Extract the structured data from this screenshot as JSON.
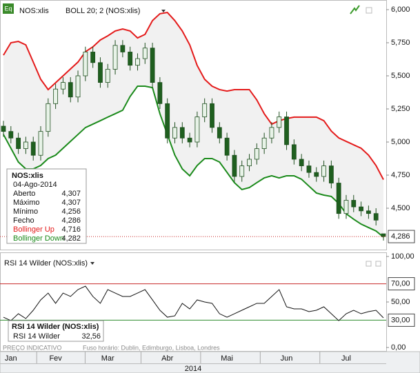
{
  "chart_data": [
    {
      "type": "candlestick",
      "title": "NOS:xlis",
      "indicator": "BOLL 20; 2 (NOS:xlis)",
      "badge": "Eq",
      "categories": [
        null,
        "Jan",
        null,
        null,
        null,
        null,
        null,
        "Fev",
        null,
        null,
        null,
        null,
        null,
        null,
        "Mar",
        null,
        null,
        null,
        null,
        null,
        null,
        null,
        "Abr",
        null,
        null,
        null,
        null,
        null,
        null,
        null,
        "Mai",
        null,
        null,
        null,
        null,
        null,
        null,
        null,
        "Jun",
        null,
        null,
        null,
        null,
        null,
        null,
        null,
        "Jul",
        null,
        null,
        null,
        null,
        null
      ],
      "xlabel": "2014",
      "open": [
        5.12,
        5.08,
        5.03,
        4.95,
        5.0,
        4.9,
        5.08,
        5.29,
        5.4,
        5.45,
        5.34,
        5.5,
        5.68,
        5.6,
        5.45,
        5.55,
        5.73,
        5.68,
        5.58,
        5.63,
        5.71,
        5.45,
        5.29,
        5.03,
        5.11,
        5.03,
        5.0,
        5.19,
        5.29,
        5.11,
        5.03,
        4.9,
        4.74,
        4.82,
        4.87,
        4.95,
        5.03,
        5.11,
        5.19,
        4.98,
        4.87,
        4.82,
        4.77,
        4.74,
        4.82,
        4.69,
        4.46,
        4.56,
        4.51,
        4.48,
        4.46,
        4.307
      ],
      "high": [
        5.16,
        5.12,
        5.07,
        5.04,
        5.04,
        5.12,
        5.33,
        5.44,
        5.49,
        5.49,
        5.54,
        5.72,
        5.72,
        5.64,
        5.59,
        5.77,
        5.77,
        5.72,
        5.67,
        5.75,
        5.75,
        5.49,
        5.33,
        5.15,
        5.15,
        5.07,
        5.23,
        5.33,
        5.33,
        5.15,
        5.07,
        4.94,
        4.86,
        4.91,
        4.99,
        5.07,
        5.15,
        5.23,
        5.23,
        5.02,
        4.91,
        4.86,
        4.81,
        4.86,
        4.86,
        4.73,
        4.6,
        4.6,
        4.55,
        4.52,
        4.5,
        4.307
      ],
      "low": [
        5.04,
        4.99,
        4.91,
        4.91,
        4.86,
        4.86,
        5.04,
        5.25,
        5.36,
        5.3,
        5.3,
        5.46,
        5.56,
        5.41,
        5.41,
        5.51,
        5.64,
        5.54,
        5.54,
        5.59,
        5.41,
        5.25,
        4.99,
        4.99,
        4.99,
        4.96,
        4.96,
        5.15,
        5.07,
        4.99,
        4.86,
        4.7,
        4.7,
        4.78,
        4.83,
        4.91,
        4.99,
        5.07,
        4.94,
        4.83,
        4.78,
        4.73,
        4.7,
        4.7,
        4.65,
        4.42,
        4.42,
        4.47,
        4.44,
        4.42,
        4.37,
        4.256
      ],
      "close": [
        5.08,
        5.03,
        4.95,
        5.0,
        4.9,
        5.08,
        5.29,
        5.4,
        5.45,
        5.34,
        5.5,
        5.68,
        5.6,
        5.45,
        5.55,
        5.73,
        5.68,
        5.58,
        5.63,
        5.71,
        5.45,
        5.29,
        5.03,
        5.11,
        5.03,
        5.0,
        5.19,
        5.29,
        5.11,
        5.03,
        4.9,
        4.74,
        4.82,
        4.87,
        4.95,
        5.03,
        5.11,
        5.19,
        4.98,
        4.87,
        4.82,
        4.77,
        4.74,
        4.82,
        4.69,
        4.46,
        4.56,
        4.51,
        4.48,
        4.46,
        4.41,
        4.286
      ],
      "price_label": "4,286",
      "series": [
        {
          "name": "Bollinger Up",
          "color": "#e41a1a",
          "last_label": "4,716",
          "values": [
            5.656,
            5.75,
            5.76,
            5.734,
            5.604,
            5.474,
            5.396,
            5.448,
            5.5,
            5.552,
            5.604,
            5.682,
            5.719,
            5.771,
            5.802,
            5.839,
            5.854,
            5.839,
            5.786,
            5.813,
            5.917,
            5.969,
            5.979,
            5.917,
            5.839,
            5.734,
            5.578,
            5.474,
            5.422,
            5.396,
            5.385,
            5.396,
            5.396,
            5.396,
            5.318,
            5.214,
            5.135,
            5.161,
            5.177,
            5.188,
            5.188,
            5.188,
            5.188,
            5.161,
            5.083,
            5.031,
            5.005,
            4.979,
            4.953,
            4.901,
            4.823,
            4.716
          ]
        },
        {
          "name": "Bollinger Down",
          "color": "#1a8a1a",
          "last_label": "4,282",
          "values": [
            5.057,
            4.953,
            4.849,
            4.797,
            4.797,
            4.823,
            4.875,
            4.901,
            4.953,
            5.005,
            5.057,
            5.109,
            5.135,
            5.161,
            5.188,
            5.214,
            5.24,
            5.344,
            5.422,
            5.422,
            5.411,
            5.214,
            5.057,
            4.901,
            4.797,
            4.745,
            4.823,
            4.875,
            4.875,
            4.849,
            4.771,
            4.693,
            4.641,
            4.656,
            4.693,
            4.729,
            4.745,
            4.729,
            4.745,
            4.745,
            4.719,
            4.667,
            4.615,
            4.599,
            4.589,
            4.536,
            4.458,
            4.417,
            4.38,
            4.354,
            4.328,
            4.282
          ]
        }
      ],
      "info_box": {
        "title": "NOS:xlis",
        "date": "04-Ago-2014",
        "rows": [
          {
            "label": "Aberto",
            "value": "4,307"
          },
          {
            "label": "Máximo",
            "value": "4,307"
          },
          {
            "label": "Mínimo",
            "value": "4,256"
          },
          {
            "label": "Fecho",
            "value": "4,286"
          }
        ]
      },
      "ylim": [
        4.1875,
        6.0729
      ],
      "yticks": [
        {
          "value": 4.5,
          "label": "4,500"
        },
        {
          "value": 4.75,
          "label": "4,750"
        },
        {
          "value": 5,
          "label": "5,000"
        },
        {
          "value": 5.25,
          "label": "5,250"
        },
        {
          "value": 5.5,
          "label": "5,500"
        },
        {
          "value": 5.75,
          "label": "5,750"
        },
        {
          "value": 6,
          "label": "6,000"
        }
      ]
    },
    {
      "type": "line",
      "title": "RSI 14 Wilder (NOS:xlis)",
      "series": [
        {
          "name": "RSI 14 Wilder",
          "color": "#111111",
          "last_label": "32,56",
          "values": [
            33.3,
            29.5,
            37.1,
            31.8,
            40.9,
            52.3,
            59.8,
            48.5,
            59.8,
            56.1,
            63.6,
            67.4,
            56.1,
            48.5,
            63.6,
            59.8,
            56.1,
            56.1,
            59.8,
            63.6,
            52.3,
            40.9,
            33.3,
            34.8,
            48.5,
            42.4,
            52.3,
            50,
            48.5,
            37.1,
            33.3,
            37.1,
            40.9,
            44.7,
            48.5,
            48.5,
            56.1,
            63.6,
            44.7,
            42.4,
            42.4,
            39.4,
            40.9,
            44.7,
            37.1,
            29.5,
            37.1,
            40.9,
            37.1,
            39.4,
            40.9,
            32.56
          ]
        }
      ],
      "levels": [
        {
          "value": 70,
          "label": "70,00",
          "color": "#c62828"
        },
        {
          "value": 30,
          "label": "30,00",
          "color": "#2e8b2e"
        }
      ],
      "ylim": [
        -4.55,
        104.55
      ],
      "yticks": [
        {
          "value": 0,
          "label": "0,00"
        },
        {
          "value": 50,
          "label": "50,00"
        },
        {
          "value": 100,
          "label": "100,00"
        }
      ]
    }
  ],
  "footer": {
    "notes": [
      "PREÇO INDICATIVO",
      "Fuso horário: Dublin, Edimburgo, Lisboa, Londres"
    ]
  }
}
